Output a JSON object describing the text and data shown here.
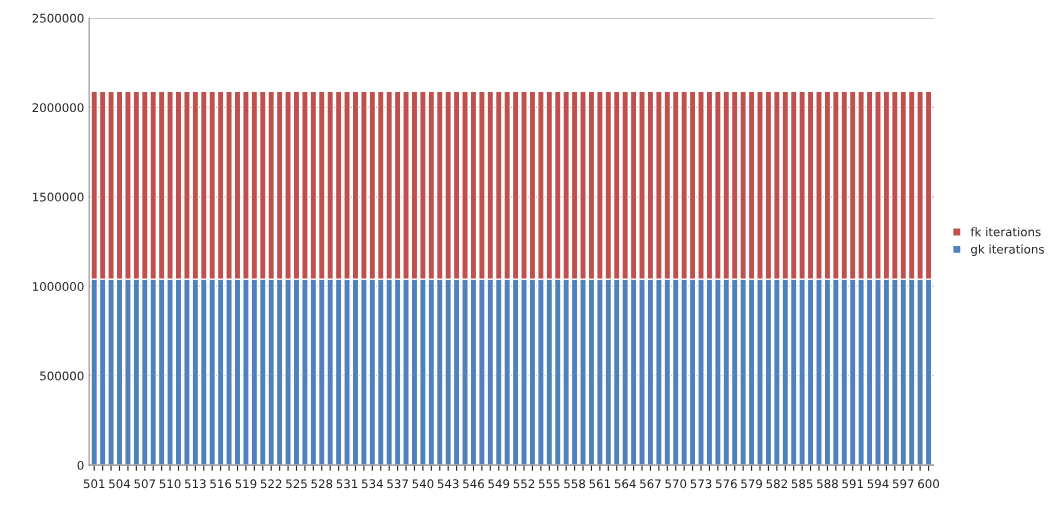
{
  "chart_data": {
    "type": "bar",
    "stacked": true,
    "categories": [
      "501",
      null,
      null,
      "504",
      null,
      null,
      "507",
      null,
      null,
      "510",
      null,
      null,
      "513",
      null,
      null,
      "516",
      null,
      null,
      "519",
      null,
      null,
      "522",
      null,
      null,
      "525",
      null,
      null,
      "528",
      null,
      null,
      "531",
      null,
      null,
      "534",
      null,
      null,
      "537",
      null,
      null,
      "540",
      null,
      null,
      "543",
      null,
      null,
      "546",
      null,
      null,
      "549",
      null,
      null,
      "552",
      null,
      null,
      "555",
      null,
      null,
      "558",
      null,
      null,
      "561",
      null,
      null,
      "564",
      null,
      null,
      "567",
      null,
      null,
      "570",
      null,
      null,
      "573",
      null,
      null,
      "576",
      null,
      null,
      "579",
      null,
      null,
      "582",
      null,
      null,
      "585",
      null,
      null,
      "588",
      null,
      null,
      "591",
      null,
      null,
      "594",
      null,
      null,
      "597",
      null,
      null,
      "600"
    ],
    "series": [
      {
        "name": "gk iterations",
        "color": "#4f81bd",
        "values": [
          1040000,
          1040000,
          1040000,
          1040000,
          1040000,
          1040000,
          1040000,
          1040000,
          1040000,
          1040000,
          1040000,
          1040000,
          1040000,
          1040000,
          1040000,
          1040000,
          1040000,
          1040000,
          1040000,
          1040000,
          1040000,
          1040000,
          1040000,
          1040000,
          1040000,
          1040000,
          1040000,
          1040000,
          1040000,
          1040000,
          1040000,
          1040000,
          1040000,
          1040000,
          1040000,
          1040000,
          1040000,
          1040000,
          1040000,
          1040000,
          1040000,
          1040000,
          1040000,
          1040000,
          1040000,
          1040000,
          1040000,
          1040000,
          1040000,
          1040000,
          1040000,
          1040000,
          1040000,
          1040000,
          1040000,
          1040000,
          1040000,
          1040000,
          1040000,
          1040000,
          1040000,
          1040000,
          1040000,
          1040000,
          1040000,
          1040000,
          1040000,
          1040000,
          1040000,
          1040000,
          1040000,
          1040000,
          1040000,
          1040000,
          1040000,
          1040000,
          1040000,
          1040000,
          1040000,
          1040000,
          1040000,
          1040000,
          1040000,
          1040000,
          1040000,
          1040000,
          1040000,
          1040000,
          1040000,
          1040000,
          1040000,
          1040000,
          1040000,
          1040000,
          1040000,
          1040000,
          1040000,
          1040000,
          1040000,
          1040000
        ]
      },
      {
        "name": "fk iterations",
        "color": "#c0504d",
        "values": [
          1050000,
          1050000,
          1050000,
          1050000,
          1050000,
          1050000,
          1050000,
          1050000,
          1050000,
          1050000,
          1050000,
          1050000,
          1050000,
          1050000,
          1050000,
          1050000,
          1050000,
          1050000,
          1050000,
          1050000,
          1050000,
          1050000,
          1050000,
          1050000,
          1050000,
          1050000,
          1050000,
          1050000,
          1050000,
          1050000,
          1050000,
          1050000,
          1050000,
          1050000,
          1050000,
          1050000,
          1050000,
          1050000,
          1050000,
          1050000,
          1050000,
          1050000,
          1050000,
          1050000,
          1050000,
          1050000,
          1050000,
          1050000,
          1050000,
          1050000,
          1050000,
          1050000,
          1050000,
          1050000,
          1050000,
          1050000,
          1050000,
          1050000,
          1050000,
          1050000,
          1050000,
          1050000,
          1050000,
          1050000,
          1050000,
          1050000,
          1050000,
          1050000,
          1050000,
          1050000,
          1050000,
          1050000,
          1050000,
          1050000,
          1050000,
          1050000,
          1050000,
          1050000,
          1050000,
          1050000,
          1050000,
          1050000,
          1050000,
          1050000,
          1050000,
          1050000,
          1050000,
          1050000,
          1050000,
          1050000,
          1050000,
          1050000,
          1050000,
          1050000,
          1050000,
          1050000,
          1050000,
          1050000,
          1050000,
          1050000
        ]
      }
    ],
    "ylim": [
      0,
      2500000
    ],
    "yticks": [
      0,
      500000,
      1000000,
      1500000,
      2000000,
      2500000
    ],
    "grid": "y",
    "legend": "right"
  }
}
